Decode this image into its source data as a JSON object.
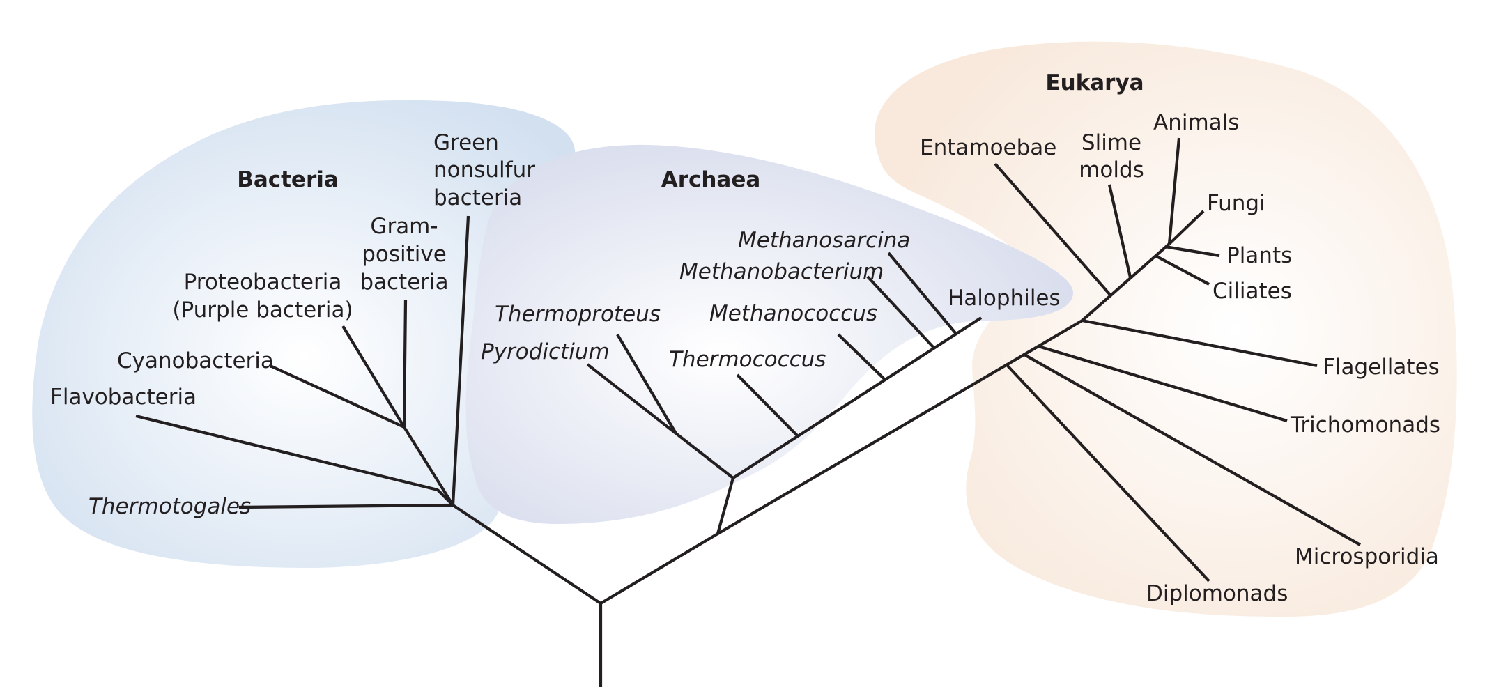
{
  "domains": {
    "bacteria": "Bacteria",
    "archaea": "Archaea",
    "eukarya": "Eukarya"
  },
  "bacteria": {
    "green_nonsulfur": [
      "Green",
      "nonsulfur",
      "bacteria"
    ],
    "gram_positive": [
      "Gram-",
      "positive",
      "bacteria"
    ],
    "proteobacteria": [
      "Proteobacteria",
      "(Purple bacteria)"
    ],
    "cyanobacteria": "Cyanobacteria",
    "flavobacteria": "Flavobacteria",
    "thermotogales": "Thermotogales"
  },
  "archaea": {
    "methanosarcina": "Methanosarcina",
    "methanobacterium": "Methanobacterium",
    "halophiles": "Halophiles",
    "methanococcus": "Methanococcus",
    "thermoproteus": "Thermoproteus",
    "pyrodictium": "Pyrodictium",
    "thermococcus": "Thermococcus"
  },
  "eukarya": {
    "entamoebae": "Entamoebae",
    "slime_molds": [
      "Slime",
      "molds"
    ],
    "animals": "Animals",
    "fungi": "Fungi",
    "plants": "Plants",
    "ciliates": "Ciliates",
    "flagellates": "Flagellates",
    "trichomonads": "Trichomonads",
    "microsporidia": "Microsporidia",
    "diplomonads": "Diplomonads"
  },
  "colors": {
    "bacteria_region": "#d3e1f1",
    "archaea_region": "#d7dced",
    "eukarya_region": "#f9ebdf",
    "branch": "#231f20"
  }
}
